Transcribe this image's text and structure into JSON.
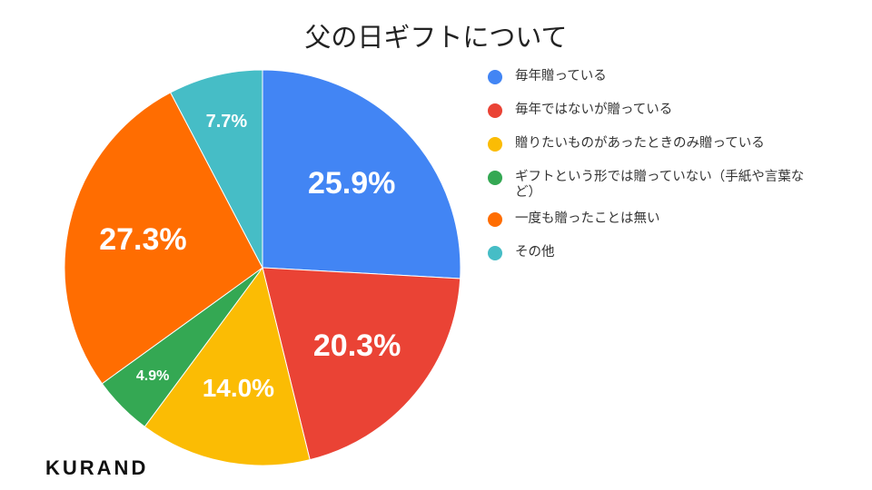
{
  "brand": "KURAND",
  "chart_data": {
    "type": "pie",
    "title": "父の日ギフトについて",
    "legend_position": "right",
    "slices": [
      {
        "label": "毎年贈っている",
        "value": 25.9,
        "display": "25.9%",
        "color": "#4285F4"
      },
      {
        "label": "毎年ではないが贈っている",
        "value": 20.3,
        "display": "20.3%",
        "color": "#EA4335"
      },
      {
        "label": "贈りたいものがあったときのみ贈っている",
        "value": 14.0,
        "display": "14.0%",
        "color": "#FBBC04"
      },
      {
        "label": "ギフトという形では贈っていない（手紙や言葉など）",
        "value": 4.9,
        "display": "4.9%",
        "color": "#34A853"
      },
      {
        "label": "一度も贈ったことは無い",
        "value": 27.3,
        "display": "27.3%",
        "color": "#FF6D01"
      },
      {
        "label": "その他",
        "value": 7.7,
        "display": "7.7%",
        "color": "#46BDC6"
      }
    ]
  }
}
